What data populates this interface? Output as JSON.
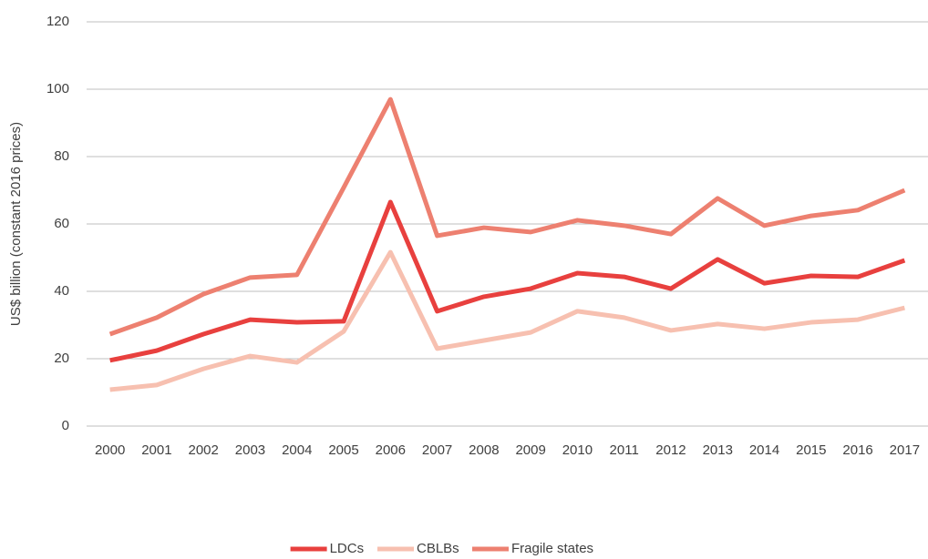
{
  "chart_data": {
    "type": "line",
    "y_label": "US$ billion (constant 2016 prices)",
    "categories": [
      "2000",
      "2001",
      "2002",
      "2003",
      "2004",
      "2005",
      "2006",
      "2007",
      "2008",
      "2009",
      "2010",
      "2011",
      "2012",
      "2013",
      "2014",
      "2015",
      "2016",
      "2017"
    ],
    "series": [
      {
        "name": "LDCs",
        "color": "#e8403e",
        "values": [
          19.5,
          22.4,
          27.3,
          31.6,
          30.8,
          31.1,
          66.5,
          34.1,
          38.4,
          40.8,
          45.4,
          44.3,
          40.8,
          49.5,
          42.4,
          44.6,
          44.3,
          49.2
        ]
      },
      {
        "name": "CBLBs",
        "color": "#f7c0b0",
        "values": [
          10.8,
          12.2,
          17,
          20.8,
          18.9,
          28.1,
          51.6,
          23,
          25.4,
          27.8,
          34.1,
          32.2,
          28.4,
          30.3,
          28.9,
          30.8,
          31.6,
          35.1
        ]
      },
      {
        "name": "Fragile states",
        "color": "#ed8070",
        "values": [
          27.3,
          32.2,
          39.2,
          44.1,
          44.9,
          70.8,
          97,
          56.5,
          58.9,
          57.6,
          61.1,
          59.5,
          57,
          67.6,
          59.5,
          62.4,
          64.1,
          70
        ]
      }
    ],
    "ylim": [
      0,
      120
    ],
    "yticks": [
      0,
      20,
      40,
      60,
      80,
      100,
      120
    ],
    "grid": true,
    "legend": "bottom"
  }
}
